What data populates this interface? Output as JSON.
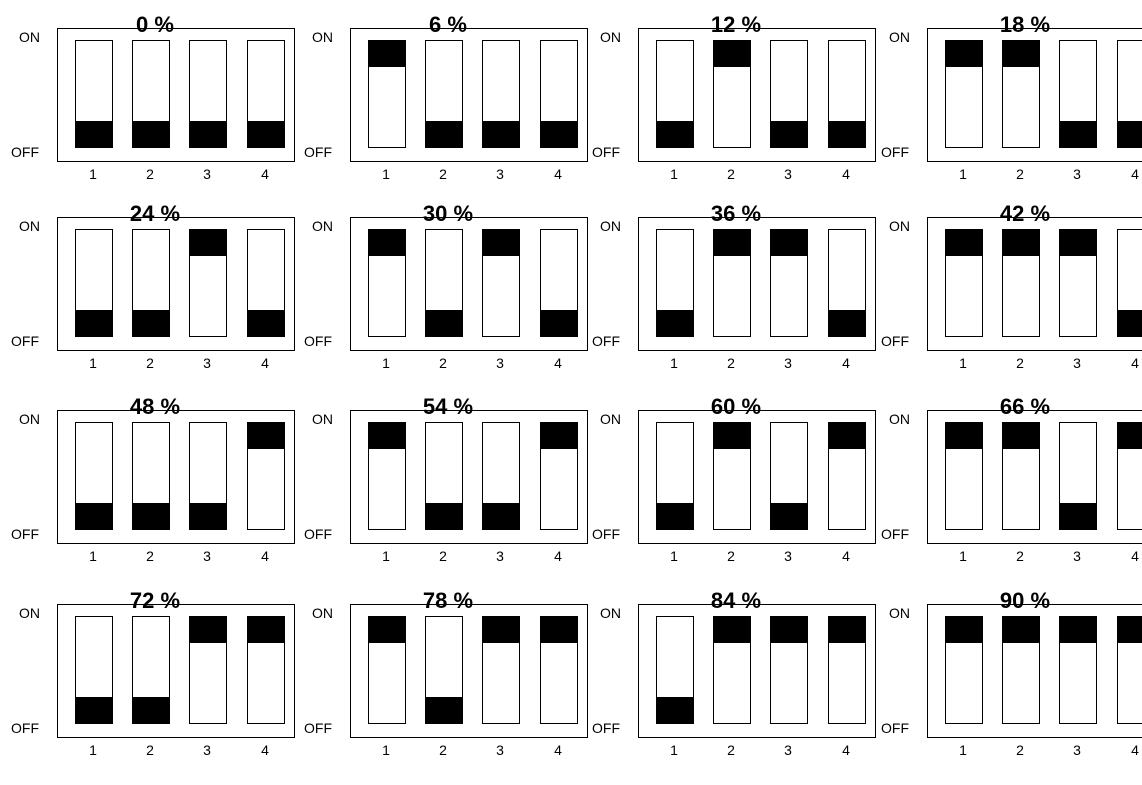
{
  "labels": {
    "on": "ON",
    "off": "OFF"
  },
  "switch_numbers": [
    "1",
    "2",
    "3",
    "4"
  ],
  "panels": [
    {
      "title": "0 %",
      "states": [
        "OFF",
        "OFF",
        "OFF",
        "OFF"
      ]
    },
    {
      "title": "6 %",
      "states": [
        "ON",
        "OFF",
        "OFF",
        "OFF"
      ]
    },
    {
      "title": "12 %",
      "states": [
        "OFF",
        "ON",
        "OFF",
        "OFF"
      ]
    },
    {
      "title": "18 %",
      "states": [
        "ON",
        "ON",
        "OFF",
        "OFF"
      ]
    },
    {
      "title": "24 %",
      "states": [
        "OFF",
        "OFF",
        "ON",
        "OFF"
      ]
    },
    {
      "title": "30 %",
      "states": [
        "ON",
        "OFF",
        "ON",
        "OFF"
      ]
    },
    {
      "title": "36 %",
      "states": [
        "OFF",
        "ON",
        "ON",
        "OFF"
      ]
    },
    {
      "title": "42 %",
      "states": [
        "ON",
        "ON",
        "ON",
        "OFF"
      ]
    },
    {
      "title": "48 %",
      "states": [
        "OFF",
        "OFF",
        "OFF",
        "ON"
      ]
    },
    {
      "title": "54 %",
      "states": [
        "ON",
        "OFF",
        "OFF",
        "ON"
      ]
    },
    {
      "title": "60 %",
      "states": [
        "OFF",
        "ON",
        "OFF",
        "ON"
      ]
    },
    {
      "title": "66 %",
      "states": [
        "ON",
        "ON",
        "OFF",
        "ON"
      ]
    },
    {
      "title": "72 %",
      "states": [
        "OFF",
        "OFF",
        "ON",
        "ON"
      ]
    },
    {
      "title": "78 %",
      "states": [
        "ON",
        "OFF",
        "ON",
        "ON"
      ]
    },
    {
      "title": "84 %",
      "states": [
        "OFF",
        "ON",
        "ON",
        "ON"
      ]
    },
    {
      "title": "90 %",
      "states": [
        "ON",
        "ON",
        "ON",
        "ON"
      ]
    }
  ]
}
